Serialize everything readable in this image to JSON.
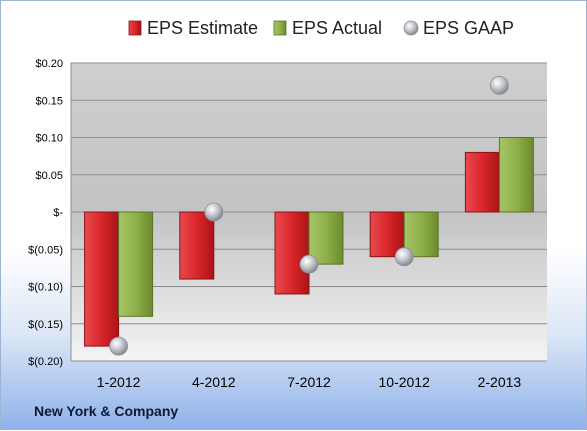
{
  "footer": {
    "company": "New York & Company"
  },
  "colors": {
    "estimate": "#d9262c",
    "actual": "#8fb04a",
    "gaap": "#b0b4bb"
  },
  "chart_data": {
    "type": "bar",
    "categories": [
      "1-2012",
      "4-2012",
      "7-2012",
      "10-2012",
      "2-2013"
    ],
    "series": [
      {
        "name": "EPS Estimate",
        "kind": "bar",
        "values": [
          -0.18,
          -0.09,
          -0.11,
          -0.06,
          0.08
        ]
      },
      {
        "name": "EPS Actual",
        "kind": "bar",
        "values": [
          -0.14,
          null,
          -0.07,
          -0.06,
          0.1
        ]
      },
      {
        "name": "EPS GAAP",
        "kind": "marker",
        "values": [
          -0.18,
          0.0,
          -0.07,
          -0.06,
          0.17
        ]
      }
    ],
    "ylim": [
      -0.2,
      0.2
    ],
    "y_ticks": [
      0.2,
      0.15,
      0.1,
      0.05,
      0.0,
      -0.05,
      -0.1,
      -0.15,
      -0.2
    ],
    "y_tick_labels": [
      "$0.20",
      "$0.15",
      "$0.10",
      "$0.05",
      "$-",
      "$(0.05)",
      "$(0.10)",
      "$(0.15)",
      "$(0.20)"
    ],
    "legend_position": "top",
    "grid": true
  }
}
